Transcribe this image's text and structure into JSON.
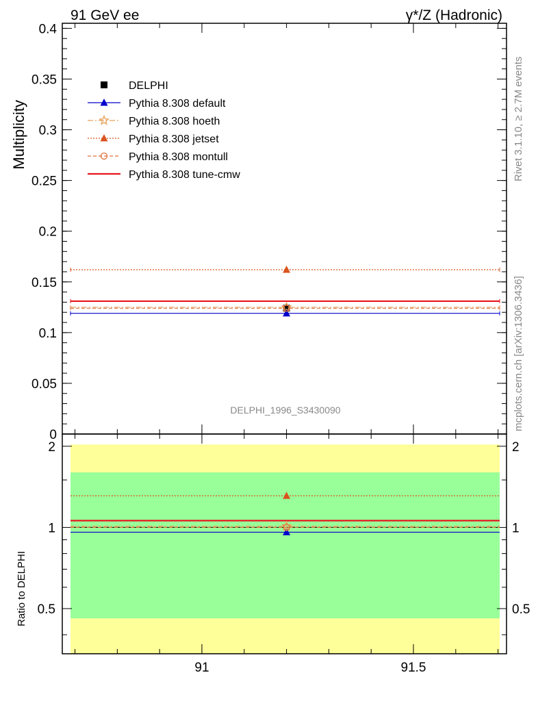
{
  "header": {
    "left_title": "91 GeV ee",
    "right_title": "γ*/Z (Hadronic)"
  },
  "side_text": {
    "rivet": "Rivet 3.1.10, ≥ 2.7M events",
    "mcplots": "mcplots.cern.ch [arXiv:1306.3436]"
  },
  "analysis_id": "DELPHI_1996_S3430090",
  "colors": {
    "delphi": "#000000",
    "default": "#0000cc",
    "hoeth": "#e8a05a",
    "jetset": "#d9531e",
    "montull": "#e0703a",
    "tunecmw": "#e8141e",
    "band_inner": "#99ff99",
    "band_outer": "#ffff99"
  },
  "chart_data": [
    {
      "type": "scatter",
      "ylabel": "Multiplicity",
      "xlim": [
        90.67,
        91.72
      ],
      "ylim": [
        0,
        0.405
      ],
      "yticks": [
        "0",
        "0.05",
        "0.1",
        "0.15",
        "0.2",
        "0.25",
        "0.3",
        "0.35",
        "0.4"
      ],
      "ytick_values": [
        0,
        0.05,
        0.1,
        0.15,
        0.2,
        0.25,
        0.3,
        0.35,
        0.4
      ],
      "legend_position": "top-left",
      "x_center": 91.2,
      "series": [
        {
          "name": "DELPHI",
          "key": "delphi",
          "y": 0.124,
          "err": 0.005
        },
        {
          "name": "Pythia 8.308 default",
          "key": "default",
          "y": 0.119
        },
        {
          "name": "Pythia 8.308 hoeth",
          "key": "hoeth",
          "y": 0.125
        },
        {
          "name": "Pythia 8.308 jetset",
          "key": "jetset",
          "y": 0.162
        },
        {
          "name": "Pythia 8.308 montull",
          "key": "montull",
          "y": 0.124
        },
        {
          "name": "Pythia 8.308 tune-cmw",
          "key": "tunecmw",
          "y": 0.131
        }
      ]
    },
    {
      "type": "scatter",
      "ylabel": "Ratio to DELPHI",
      "xlim": [
        90.67,
        91.72
      ],
      "ylim": [
        0.34,
        2.22
      ],
      "scale": "log",
      "yticks": [
        "0.5",
        "1",
        "2"
      ],
      "ytick_values": [
        0.5,
        1,
        2
      ],
      "xticks": [
        "91",
        "91.5"
      ],
      "xtick_values": [
        91,
        91.5
      ],
      "band_inner": [
        0.46,
        1.6
      ],
      "band_outer": [
        0.34,
        2.03
      ],
      "series": [
        {
          "name": "DELPHI",
          "key": "delphi",
          "y": 1.0
        },
        {
          "name": "Pythia 8.308 default",
          "key": "default",
          "y": 0.96
        },
        {
          "name": "Pythia 8.308 hoeth",
          "key": "hoeth",
          "y": 1.01
        },
        {
          "name": "Pythia 8.308 jetset",
          "key": "jetset",
          "y": 1.31
        },
        {
          "name": "Pythia 8.308 montull",
          "key": "montull",
          "y": 1.0
        },
        {
          "name": "Pythia 8.308 tune-cmw",
          "key": "tunecmw",
          "y": 1.06
        }
      ]
    }
  ]
}
